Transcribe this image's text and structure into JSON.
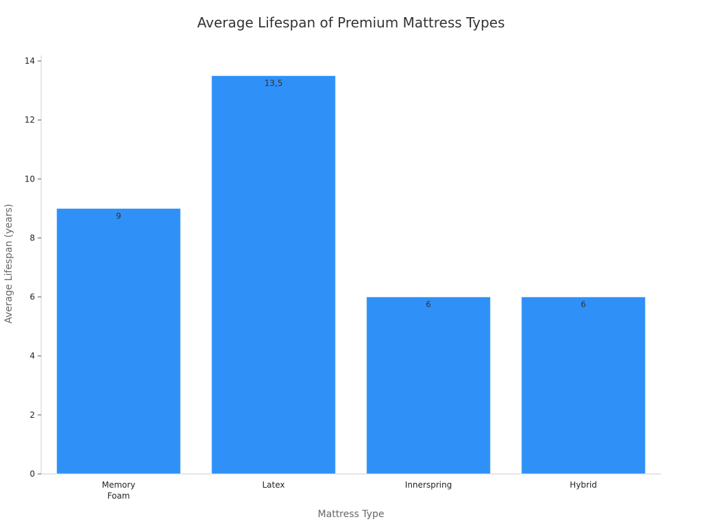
{
  "chart_data": {
    "type": "bar",
    "title": "Average Lifespan of Premium Mattress Types",
    "xlabel": "Mattress Type",
    "ylabel": "Average Lifespan (years)",
    "categories": [
      "Memory Foam",
      "Latex",
      "Innerspring",
      "Hybrid"
    ],
    "values": [
      9,
      13.5,
      6,
      6
    ],
    "value_labels": [
      "9",
      "13,5",
      "6",
      "6"
    ],
    "ylim": [
      0,
      14
    ],
    "yticks": [
      0,
      2,
      4,
      6,
      8,
      10,
      12,
      14
    ],
    "ytick_labels": [
      "0",
      "2",
      "4",
      "6",
      "8",
      "10",
      "12",
      "14"
    ],
    "bar_color": "#2f91f7",
    "bar_edge_color": "#d6e8fb",
    "grid": false,
    "legend": "none"
  }
}
